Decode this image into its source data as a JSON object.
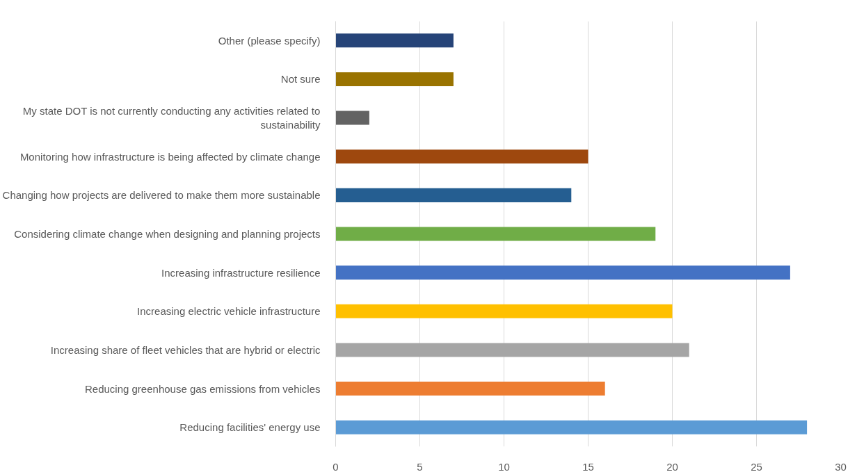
{
  "chart_data": {
    "type": "bar",
    "orientation": "horizontal",
    "categories": [
      "Other (please specify)",
      "Not sure",
      "My state DOT is not currently conducting any activities related to sustainability",
      "Monitoring how infrastructure is being affected by climate change",
      "Changing how projects are delivered to make them more sustainable",
      "Considering climate change when designing and planning projects",
      "Increasing infrastructure resilience",
      "Increasing electric vehicle infrastructure",
      "Increasing share of fleet vehicles that are hybrid or electric",
      "Reducing greenhouse gas emissions from vehicles",
      "Reducing facilities' energy use"
    ],
    "values": [
      7,
      7,
      2,
      15,
      14,
      19,
      27,
      20,
      21,
      16,
      28
    ],
    "colors": [
      "#264478",
      "#997300",
      "#636363",
      "#9e480e",
      "#255e91",
      "#70ad47",
      "#4472c4",
      "#ffc000",
      "#a5a5a5",
      "#ed7d31",
      "#5b9bd5"
    ],
    "xlim": [
      0,
      30
    ],
    "xticks": [
      0,
      5,
      10,
      15,
      20,
      25,
      30
    ],
    "grid": "x"
  }
}
